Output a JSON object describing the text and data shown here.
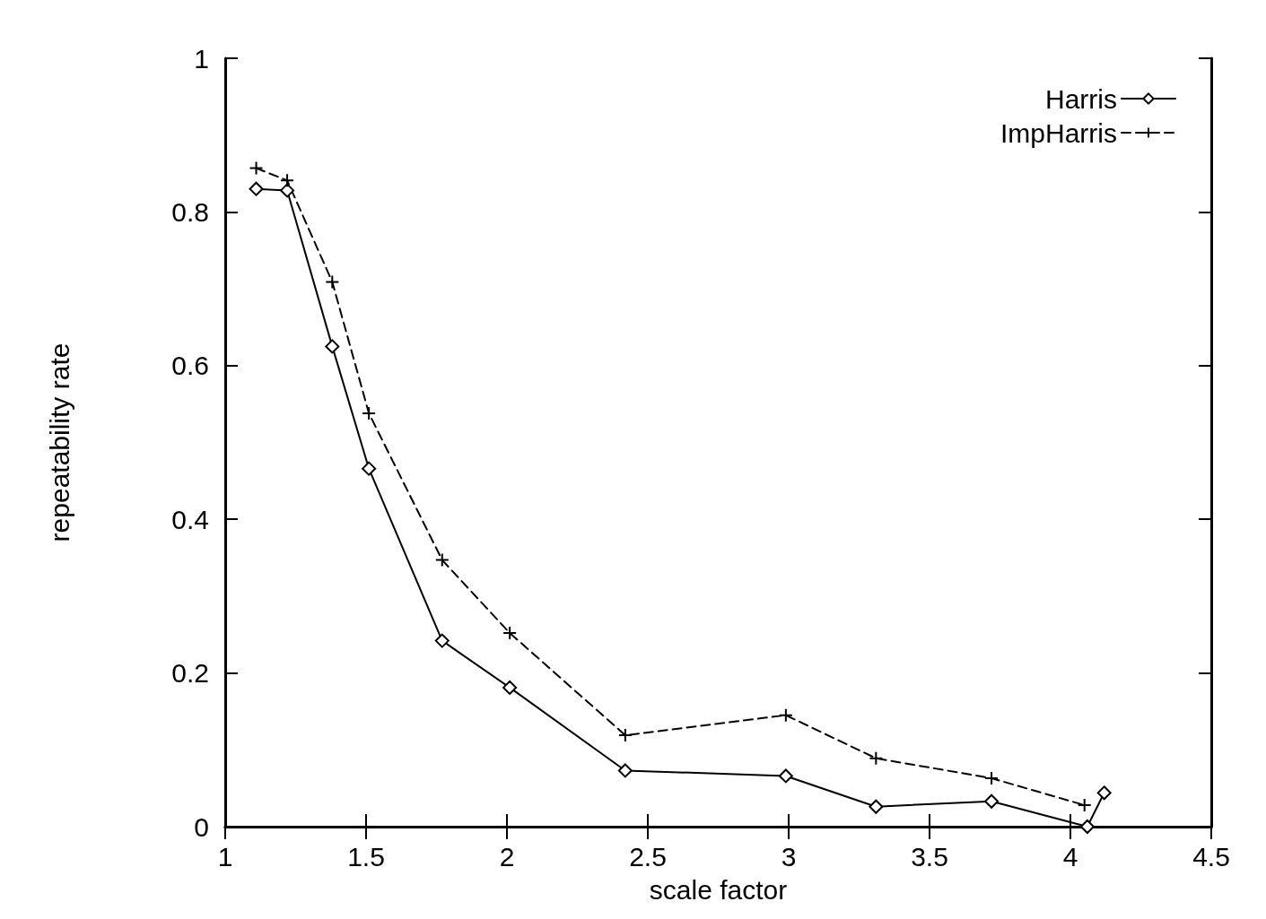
{
  "chart_data": {
    "type": "line",
    "xlabel": "scale factor",
    "ylabel": "repeatability rate",
    "xlim": [
      1,
      4.5
    ],
    "xticks": [
      1,
      1.5,
      2,
      2.5,
      3,
      3.5,
      4,
      4.5
    ],
    "ylim": [
      0,
      1
    ],
    "yticks": [
      0,
      0.2,
      0.4,
      0.6,
      0.8,
      1
    ],
    "grid": false,
    "legend": "top right",
    "series": [
      {
        "name": "Harris",
        "color": "#000000",
        "marker": "diamond",
        "line_style": "solid",
        "x": [
          1.11,
          1.22,
          1.38,
          1.51,
          1.77,
          2.01,
          2.42,
          2.99,
          3.31,
          3.72,
          4.06,
          4.12
        ],
        "values": [
          0.83,
          0.828,
          0.625,
          0.466,
          0.242,
          0.181,
          0.073,
          0.066,
          0.026,
          0.033,
          0,
          0.044
        ]
      },
      {
        "name": "ImpHarris",
        "color": "#000000",
        "marker": "cross",
        "line_style": "dashed",
        "x": [
          1.11,
          1.22,
          1.38,
          1.51,
          1.77,
          2.01,
          2.42,
          2.99,
          3.31,
          3.72,
          4.05
        ],
        "values": [
          0.857,
          0.841,
          0.709,
          0.538,
          0.347,
          0.252,
          0.119,
          0.145,
          0.089,
          0.063,
          0.028
        ]
      }
    ]
  }
}
